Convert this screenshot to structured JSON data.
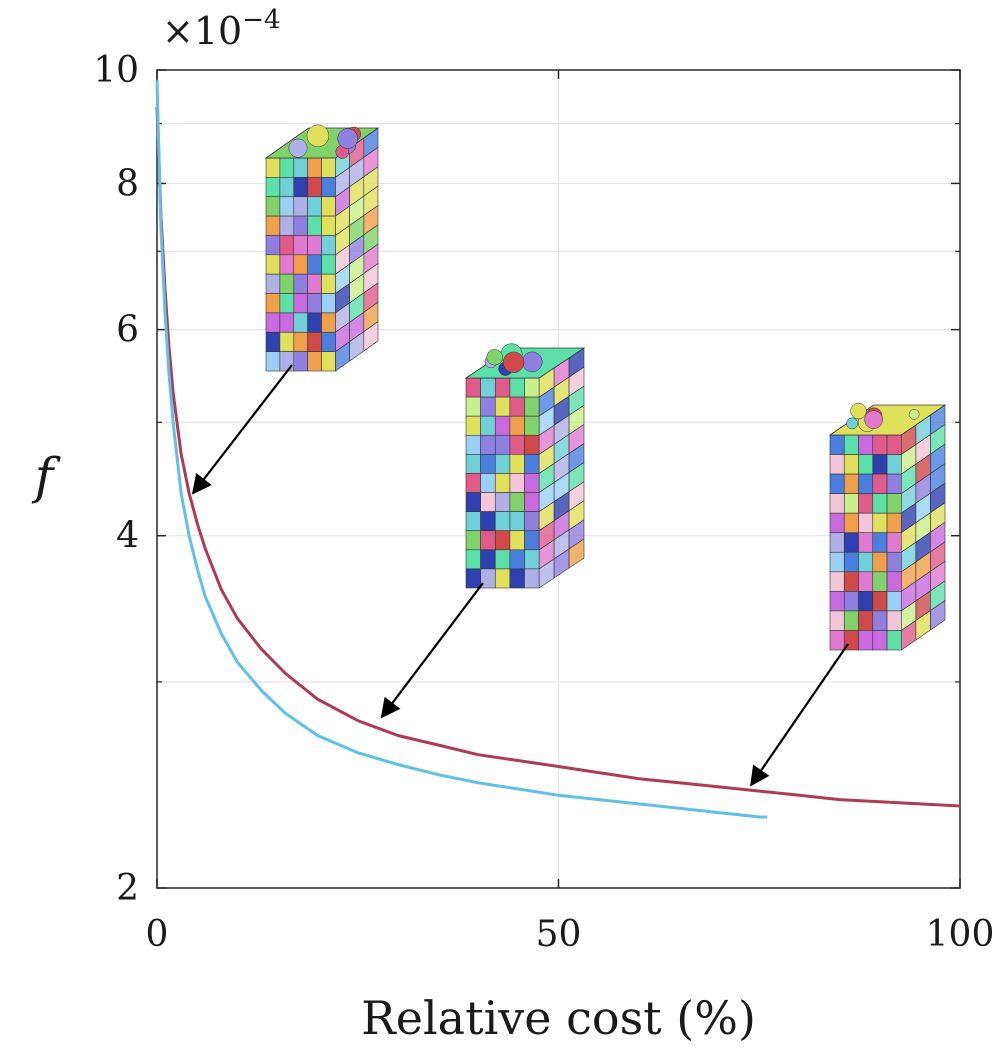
{
  "chart_data": {
    "type": "line",
    "xlabel": "Relative cost (%)",
    "ylabel": "f",
    "y_multiplier": {
      "base": "×10",
      "exponent": "−4"
    },
    "xlim": [
      0,
      100
    ],
    "ylim": [
      2,
      10
    ],
    "y_scale": "log",
    "y_units_factor": "1e-4",
    "x_ticks": [
      "0",
      "50",
      "100"
    ],
    "y_ticks": [
      "2",
      "4",
      "6",
      "8",
      "10"
    ],
    "grid": true,
    "series": [
      {
        "color": "#b03a55",
        "x": [
          0,
          0.5,
          1,
          1.5,
          2,
          3,
          4,
          5,
          6,
          8,
          10,
          13,
          16,
          20,
          25,
          30,
          35,
          40,
          45,
          50,
          55,
          60,
          65,
          70,
          75,
          80,
          85,
          90,
          95,
          100
        ],
        "y": [
          9.3,
          7.5,
          6.5,
          5.8,
          5.3,
          4.7,
          4.35,
          4.1,
          3.9,
          3.6,
          3.4,
          3.2,
          3.05,
          2.9,
          2.78,
          2.7,
          2.65,
          2.6,
          2.57,
          2.54,
          2.51,
          2.48,
          2.46,
          2.44,
          2.42,
          2.4,
          2.38,
          2.37,
          2.36,
          2.35
        ]
      },
      {
        "color": "#5fc0ea",
        "x": [
          0,
          0.5,
          1,
          1.5,
          2,
          3,
          4,
          5,
          6,
          8,
          10,
          13,
          16,
          20,
          25,
          30,
          35,
          40,
          45,
          50,
          55,
          60,
          65,
          70,
          75,
          76
        ],
        "y": [
          9.8,
          7.3,
          6.2,
          5.5,
          5.0,
          4.35,
          4.0,
          3.75,
          3.55,
          3.3,
          3.12,
          2.95,
          2.82,
          2.7,
          2.61,
          2.55,
          2.5,
          2.46,
          2.43,
          2.4,
          2.38,
          2.36,
          2.34,
          2.32,
          2.3,
          2.3
        ]
      }
    ],
    "insets": [
      {
        "icon": "polycrystal-column-icon",
        "points_to": {
          "x": 4.5,
          "y": 4.35
        }
      },
      {
        "icon": "polycrystal-column-icon",
        "points_to": {
          "x": 28,
          "y": 2.8
        }
      },
      {
        "icon": "polycrystal-column-icon",
        "points_to": {
          "x": 74,
          "y": 2.45
        }
      }
    ]
  }
}
